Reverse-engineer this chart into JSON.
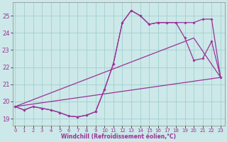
{
  "xlabel": "Windchill (Refroidissement éolien,°C)",
  "background_color": "#cce8e8",
  "grid_color": "#99cccc",
  "line_color": "#993399",
  "x_ticks": [
    0,
    1,
    2,
    3,
    4,
    5,
    6,
    7,
    8,
    9,
    10,
    11,
    12,
    13,
    14,
    15,
    16,
    17,
    18,
    19,
    20,
    21,
    22,
    23
  ],
  "y_ticks": [
    19,
    20,
    21,
    22,
    23,
    24,
    25
  ],
  "ylim": [
    18.6,
    25.8
  ],
  "xlim": [
    -0.3,
    23.5
  ],
  "curve1_x": [
    0,
    1,
    2,
    3,
    4,
    5,
    6,
    7,
    8,
    9,
    10,
    11,
    12,
    13,
    14,
    15,
    16,
    17,
    18,
    19,
    20,
    21,
    22,
    23
  ],
  "curve1_y": [
    19.7,
    19.5,
    19.7,
    19.6,
    19.5,
    19.35,
    19.15,
    19.1,
    19.2,
    19.4,
    20.7,
    22.2,
    24.6,
    25.3,
    25.0,
    24.5,
    24.6,
    24.6,
    24.6,
    24.6,
    24.6,
    24.8,
    24.8,
    21.4
  ],
  "curve2_x": [
    0,
    1,
    2,
    3,
    4,
    5,
    6,
    7,
    8,
    9,
    10,
    11,
    12,
    13,
    14,
    15,
    16,
    17,
    18,
    19,
    20,
    21,
    22,
    23
  ],
  "curve2_y": [
    19.7,
    19.5,
    19.7,
    19.6,
    19.5,
    19.35,
    19.15,
    19.1,
    19.2,
    19.4,
    20.7,
    22.2,
    24.6,
    25.3,
    25.0,
    24.5,
    24.6,
    24.6,
    24.6,
    23.7,
    22.4,
    22.5,
    23.5,
    21.4
  ],
  "curve3_x": [
    0,
    23
  ],
  "curve3_y": [
    19.7,
    21.4
  ],
  "curve4_x": [
    0,
    20,
    23
  ],
  "curve4_y": [
    19.7,
    23.7,
    21.4
  ]
}
